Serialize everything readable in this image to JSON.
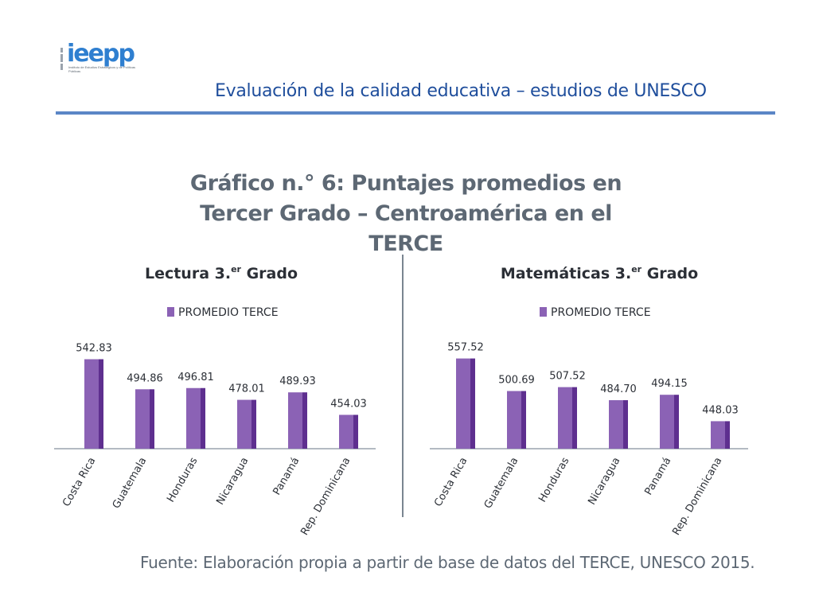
{
  "header": {
    "logo_text": "ieepp",
    "logo_tagline": "Instituto de Estudios Estratégicos y de Políticas Públicas",
    "title": "Evaluación de la calidad educativa – estudios de UNESCO"
  },
  "figure": {
    "title_line1": "Gráfico n.° 6: Puntajes promedios en",
    "title_line2": "Tercer Grado – Centroamérica en el TERCE",
    "source": "Fuente: Elaboración propia a partir de base de datos del TERCE, UNESCO 2015."
  },
  "colors": {
    "bar_front": "#8b62b5",
    "bar_side": "#5e2f8f",
    "title": "#5d6874",
    "header": "#1f4e9c",
    "rule": "#5b86c6"
  },
  "chart_data": [
    {
      "type": "bar",
      "title_main": "Lectura 3.",
      "title_sup": "er",
      "title_end": " Grado",
      "categories": [
        "Costa Rica",
        "Guatemala",
        "Honduras",
        "Nicaragua",
        "Panamá",
        "Rep. Dominicana"
      ],
      "series": [
        {
          "name": "PROMEDIO TERCE",
          "values": [
            542.83,
            494.86,
            496.81,
            478.01,
            489.93,
            454.03
          ]
        }
      ],
      "value_labels": [
        "542.83",
        "494.86",
        "496.81",
        "478.01",
        "489.93",
        "454.03"
      ],
      "ylim": [
        400,
        560
      ],
      "legend": "top-center",
      "grid": false
    },
    {
      "type": "bar",
      "title_main": "Matemáticas 3.",
      "title_sup": "er",
      "title_end": " Grado",
      "categories": [
        "Costa Rica",
        "Guatemala",
        "Honduras",
        "Nicaragua",
        "Panamá",
        "Rep. Dominicana"
      ],
      "series": [
        {
          "name": "PROMEDIO TERCE",
          "values": [
            557.52,
            500.69,
            507.52,
            484.7,
            494.15,
            448.03
          ]
        }
      ],
      "value_labels": [
        "557.52",
        "500.69",
        "507.52",
        "484.70",
        "494.15",
        "448.03"
      ],
      "ylim": [
        400,
        575
      ],
      "legend": "top-center",
      "grid": false
    }
  ]
}
